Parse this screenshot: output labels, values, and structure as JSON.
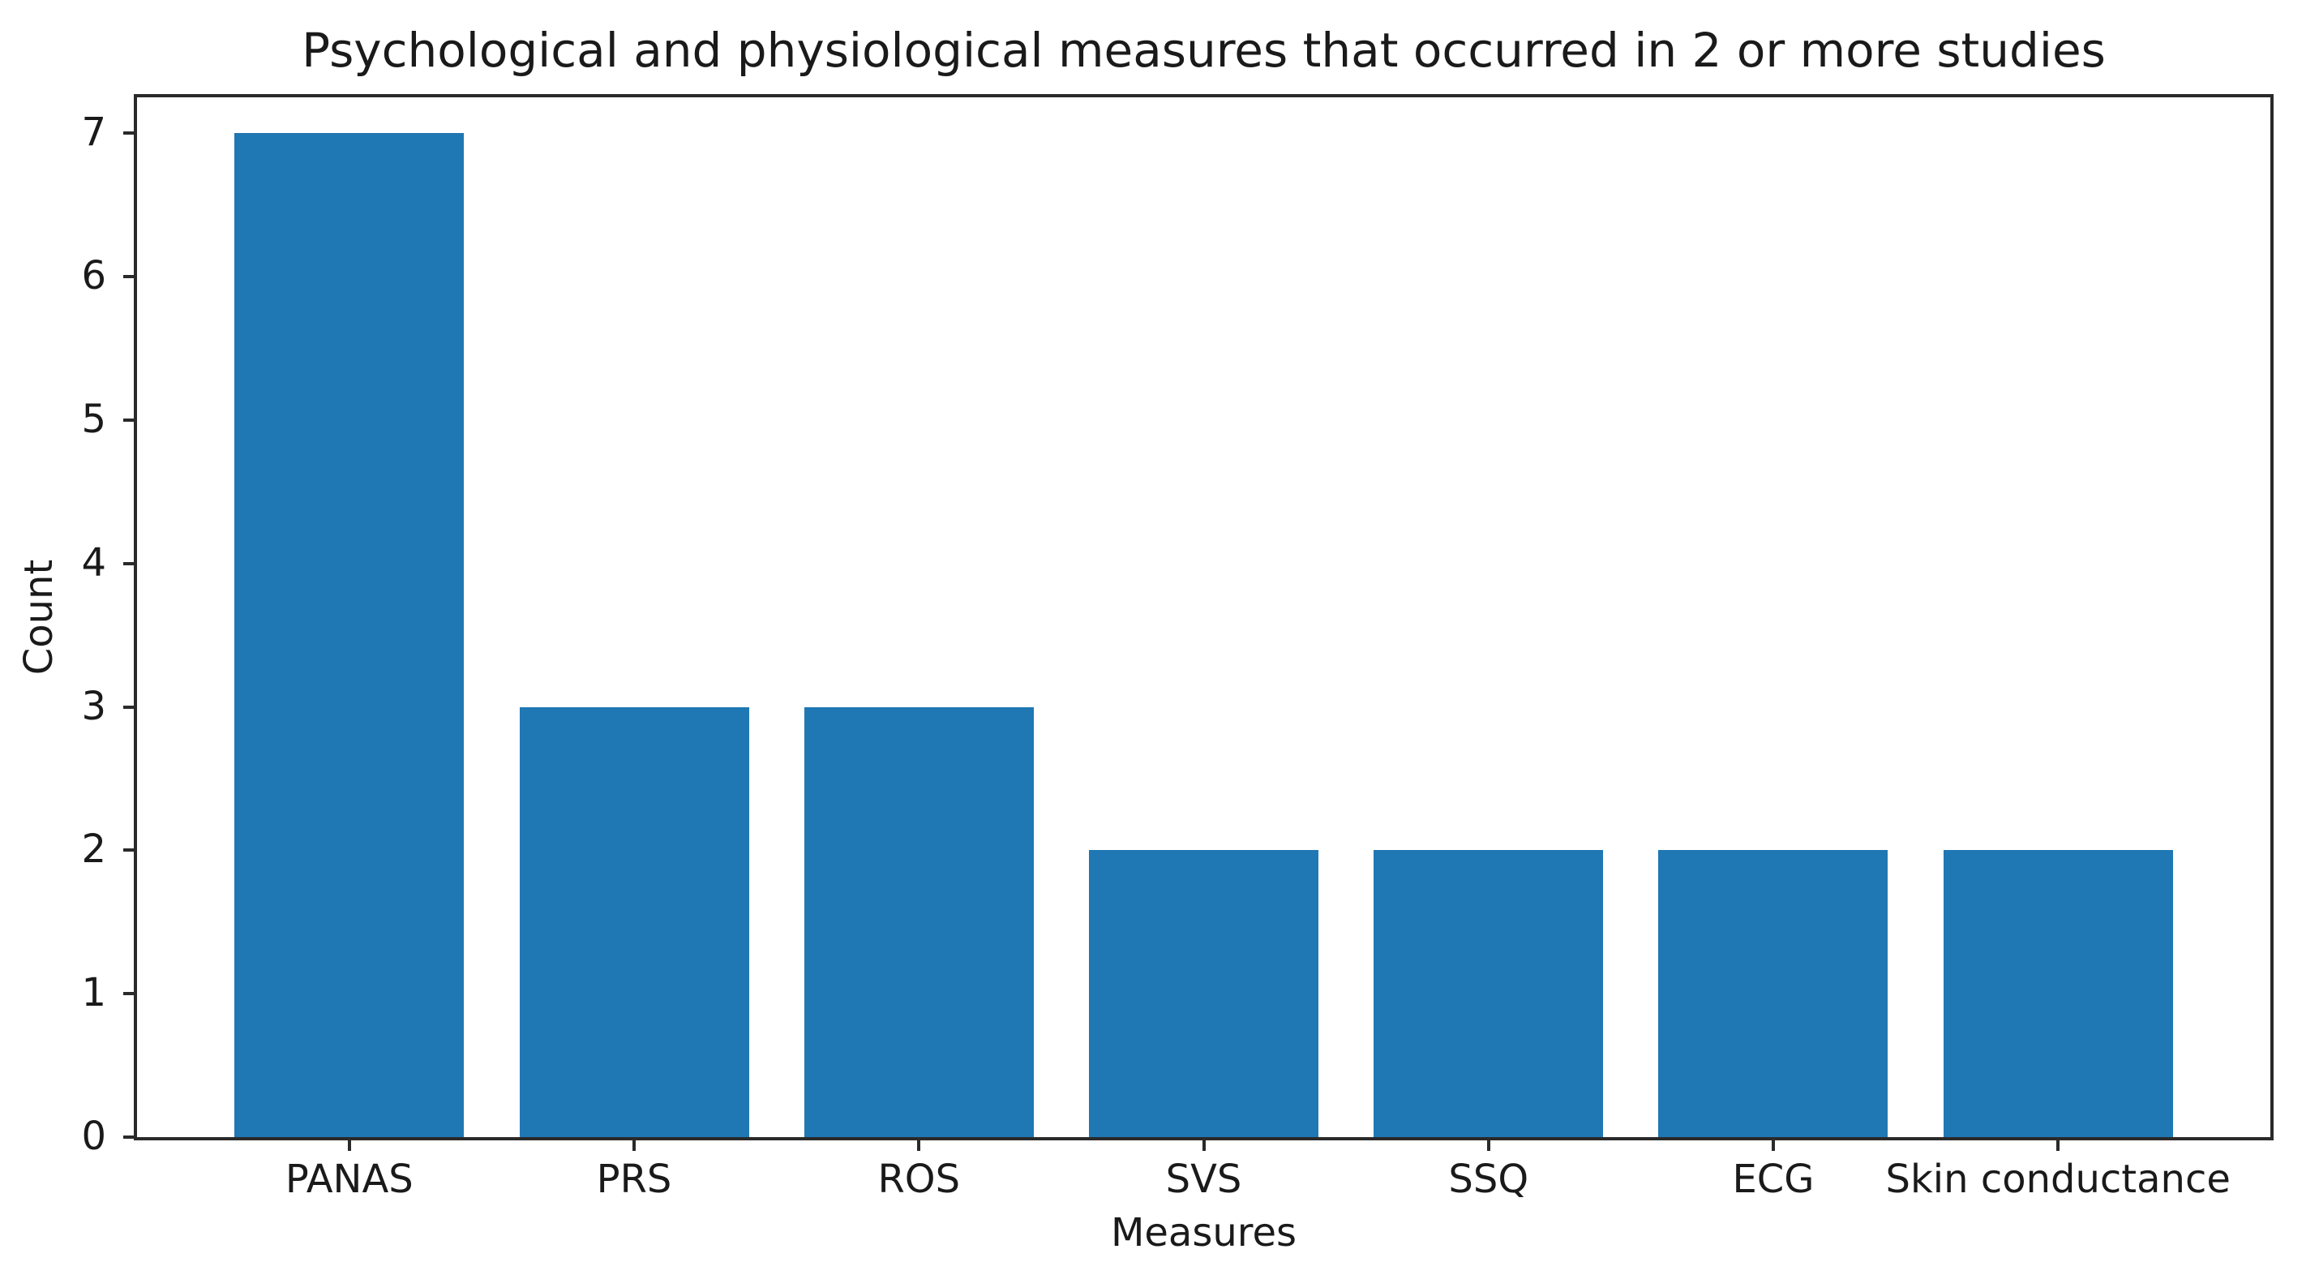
{
  "chart_data": {
    "type": "bar",
    "title": "Psychological and physiological measures that occurred in 2 or more studies",
    "xlabel": "Measures",
    "ylabel": "Count",
    "categories": [
      "PANAS",
      "PRS",
      "ROS",
      "SVS",
      "SSQ",
      "ECG",
      "Skin conductance"
    ],
    "values": [
      7,
      3,
      3,
      2,
      2,
      2,
      2
    ],
    "yticks": [
      0,
      1,
      2,
      3,
      4,
      5,
      6,
      7
    ],
    "ylim": [
      0,
      7.25
    ],
    "grid": false,
    "legend_position": "none",
    "colors": {
      "bar": "#1f77b4",
      "axis": "#2a2a2a",
      "text": "#1a1a1a",
      "background": "#ffffff"
    }
  }
}
